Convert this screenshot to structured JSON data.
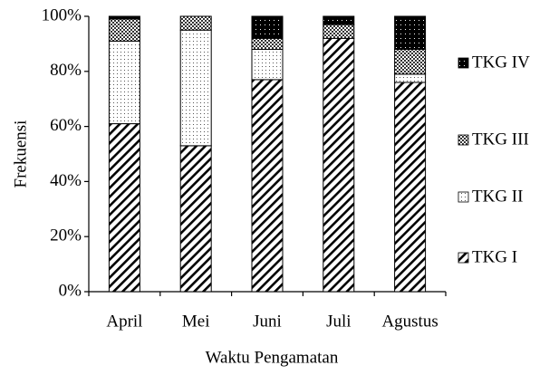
{
  "chart_data": {
    "type": "stacked-bar-percent",
    "y_label": "Frekuensi",
    "x_label": "Waktu Pengamatan",
    "categories": [
      "April",
      "Mei",
      "Juni",
      "Juli",
      "Agustus"
    ],
    "series": [
      {
        "name": "TKG I",
        "pattern": "diagonal",
        "values": [
          61,
          53,
          77,
          92,
          76
        ]
      },
      {
        "name": "TKG II",
        "pattern": "dots",
        "values": [
          30,
          42,
          11,
          0,
          3
        ]
      },
      {
        "name": "TKG III",
        "pattern": "checker",
        "values": [
          8,
          5,
          4,
          5,
          9
        ]
      },
      {
        "name": "TKG IV",
        "pattern": "dark-dots",
        "values": [
          1,
          0,
          8,
          3,
          12
        ]
      }
    ],
    "ylim": [
      0,
      100
    ],
    "yticks": [
      {
        "value": 0,
        "label": "0%"
      },
      {
        "value": 20,
        "label": "20%"
      },
      {
        "value": 40,
        "label": "40%"
      },
      {
        "value": 60,
        "label": "60%"
      },
      {
        "value": 80,
        "label": "80%"
      },
      {
        "value": 100,
        "label": "100%"
      }
    ],
    "legend": "right"
  }
}
